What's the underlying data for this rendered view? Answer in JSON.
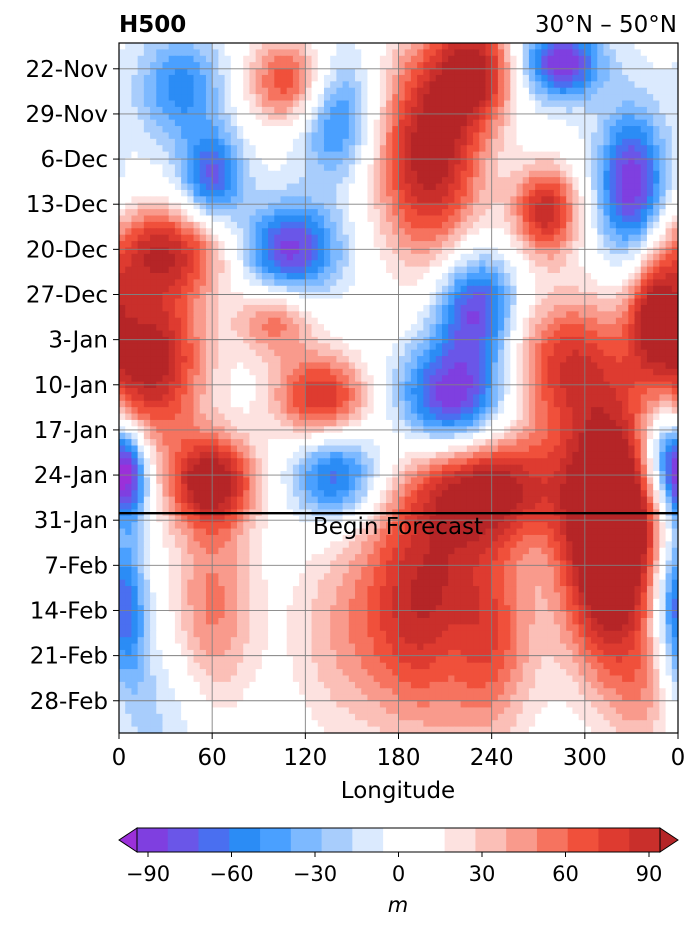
{
  "chart_data": {
    "type": "heatmap",
    "title_left": "H500",
    "title_right": "30°N – 50°N",
    "xlabel": "Longitude",
    "ylabel": "",
    "x_ticks": [
      "0",
      "60",
      "120",
      "180",
      "240",
      "300",
      "0"
    ],
    "x_tick_values": [
      0,
      60,
      120,
      180,
      240,
      300,
      360
    ],
    "xlim": [
      0,
      360
    ],
    "y_ticks": [
      "22-Nov",
      "29-Nov",
      "6-Dec",
      "13-Dec",
      "20-Dec",
      "27-Dec",
      "3-Jan",
      "10-Jan",
      "17-Jan",
      "24-Jan",
      "31-Jan",
      "7-Feb",
      "14-Feb",
      "21-Feb",
      "28-Feb"
    ],
    "ylim": [
      "2019-11-18",
      "2020-03-04"
    ],
    "y_direction": "time increases downward",
    "forecast_start": "31-Jan",
    "forecast_label": "Begin Forecast",
    "grid": true,
    "colorbar": {
      "label": "m",
      "ticks": [
        "−90",
        "−60",
        "−30",
        "0",
        "30",
        "60",
        "90"
      ],
      "tick_values": [
        -90,
        -60,
        -30,
        0,
        30,
        60,
        90
      ],
      "range": [
        -105,
        105
      ],
      "extend": "both",
      "colors": [
        "#9b30d9",
        "#7f3fe0",
        "#6a56e8",
        "#4a6ff0",
        "#2b8cf5",
        "#4aa0ff",
        "#7db9ff",
        "#a8cdfc",
        "#dbeafe",
        "#ffffff",
        "#ffffff",
        "#fde2e0",
        "#fbbfb7",
        "#f99a8c",
        "#f6735f",
        "#f0503b",
        "#de3b30",
        "#c92f2b",
        "#b52527"
      ]
    },
    "anomaly_blobs": [
      {
        "lon": 200,
        "date": "2019-12-05",
        "value": 105,
        "sx": 25,
        "sy": 12
      },
      {
        "lon": 230,
        "date": "2019-11-22",
        "value": 85,
        "sx": 18,
        "sy": 6
      },
      {
        "lon": 285,
        "date": "2019-11-21",
        "value": -95,
        "sx": 18,
        "sy": 4
      },
      {
        "lon": 330,
        "date": "2019-12-10",
        "value": -95,
        "sx": 15,
        "sy": 8
      },
      {
        "lon": 275,
        "date": "2019-12-14",
        "value": 90,
        "sx": 15,
        "sy": 5
      },
      {
        "lon": 30,
        "date": "2019-12-20",
        "value": 80,
        "sx": 30,
        "sy": 5
      },
      {
        "lon": 20,
        "date": "2020-01-06",
        "value": 105,
        "sx": 25,
        "sy": 9
      },
      {
        "lon": 110,
        "date": "2019-12-20",
        "value": -90,
        "sx": 22,
        "sy": 5
      },
      {
        "lon": 60,
        "date": "2019-12-09",
        "value": -75,
        "sx": 14,
        "sy": 5
      },
      {
        "lon": 40,
        "date": "2019-11-25",
        "value": -55,
        "sx": 20,
        "sy": 6
      },
      {
        "lon": 140,
        "date": "2019-11-29",
        "value": -65,
        "sx": 18,
        "sy": 7
      },
      {
        "lon": 110,
        "date": "2019-11-24",
        "value": 75,
        "sx": 20,
        "sy": 5
      },
      {
        "lon": 230,
        "date": "2019-12-29",
        "value": -90,
        "sx": 18,
        "sy": 6
      },
      {
        "lon": 215,
        "date": "2020-01-12",
        "value": -100,
        "sx": 25,
        "sy": 6
      },
      {
        "lon": 130,
        "date": "2020-01-12",
        "value": 85,
        "sx": 22,
        "sy": 5
      },
      {
        "lon": 100,
        "date": "2019-12-31",
        "value": 55,
        "sx": 18,
        "sy": 4
      },
      {
        "lon": 290,
        "date": "2020-01-07",
        "value": 80,
        "sx": 30,
        "sy": 8
      },
      {
        "lon": 345,
        "date": "2019-12-30",
        "value": 80,
        "sx": 12,
        "sy": 6
      },
      {
        "lon": 240,
        "date": "2020-01-26",
        "value": 95,
        "sx": 30,
        "sy": 6
      },
      {
        "lon": 60,
        "date": "2020-01-25",
        "value": 100,
        "sx": 20,
        "sy": 5
      },
      {
        "lon": 140,
        "date": "2020-01-24",
        "value": -75,
        "sx": 20,
        "sy": 5
      },
      {
        "lon": 5,
        "date": "2020-01-24",
        "value": -100,
        "sx": 10,
        "sy": 5
      },
      {
        "lon": 350,
        "date": "2020-01-21",
        "value": -75,
        "sx": 12,
        "sy": 6
      },
      {
        "lon": 320,
        "date": "2020-01-27",
        "value": 100,
        "sx": 25,
        "sy": 10
      },
      {
        "lon": 195,
        "date": "2020-02-12",
        "value": 90,
        "sx": 28,
        "sy": 14
      },
      {
        "lon": 315,
        "date": "2020-02-09",
        "value": 95,
        "sx": 22,
        "sy": 12
      },
      {
        "lon": 60,
        "date": "2020-02-14",
        "value": 55,
        "sx": 20,
        "sy": 12
      },
      {
        "lon": 240,
        "date": "2020-02-18",
        "value": 55,
        "sx": 22,
        "sy": 12
      },
      {
        "lon": 140,
        "date": "2020-02-18",
        "value": 30,
        "sx": 25,
        "sy": 12
      },
      {
        "lon": 215,
        "date": "2020-02-20",
        "value": -15,
        "sx": 12,
        "sy": 6
      },
      {
        "lon": 5,
        "date": "2020-02-14",
        "value": -55,
        "sx": 10,
        "sy": 10
      },
      {
        "lon": 355,
        "date": "2020-02-12",
        "value": -45,
        "sx": 10,
        "sy": 8
      },
      {
        "lon": 30,
        "date": "2020-03-01",
        "value": -22,
        "sx": 25,
        "sy": 10
      },
      {
        "lon": 340,
        "date": "2020-02-27",
        "value": 35,
        "sx": 18,
        "sy": 8
      }
    ]
  }
}
